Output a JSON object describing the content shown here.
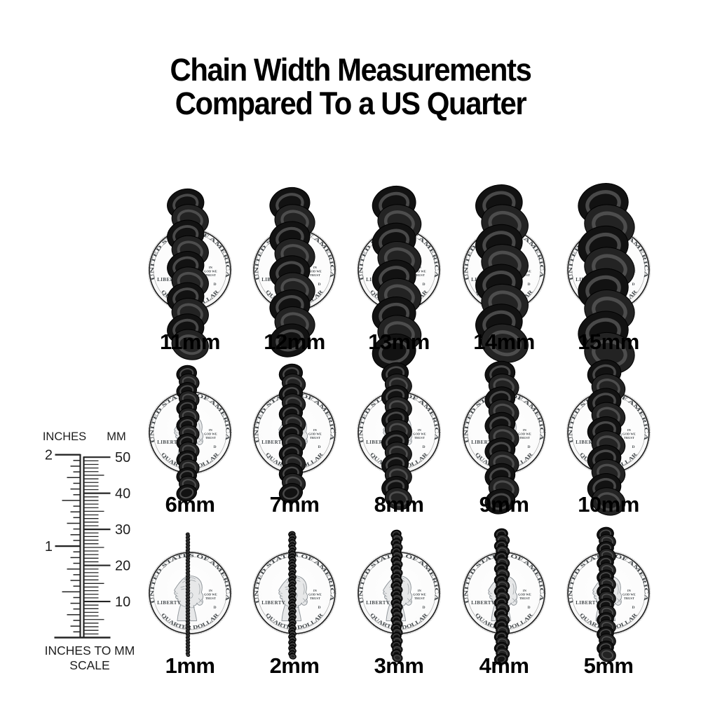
{
  "title": {
    "line1": "Chain Width Measurements",
    "line2": "Compared To a US Quarter"
  },
  "ruler": {
    "left_header": "INCHES",
    "right_header": "MM",
    "left_unit_labels": [
      "2",
      "1"
    ],
    "right_unit_labels": [
      "50",
      "40",
      "30",
      "20",
      "10"
    ],
    "caption_line1": "INCHES TO MM",
    "caption_line2": "SCALE"
  },
  "coin": {
    "top_arc_text": "UNITED STATES OF AMERICA",
    "bottom_arc_text": "QUARTER DOLLAR",
    "left_text": "LIBERTY",
    "right_motto_lines": [
      "IN",
      "GOD WE",
      "TRUST"
    ],
    "mint_mark": "D"
  },
  "grid": {
    "unit_suffix": "mm",
    "rows": [
      {
        "sizes_mm": [
          11,
          12,
          13,
          14,
          15
        ],
        "labels": [
          "11mm",
          "12mm",
          "13mm",
          "14mm",
          "15mm"
        ]
      },
      {
        "sizes_mm": [
          6,
          7,
          8,
          9,
          10
        ],
        "labels": [
          "6mm",
          "7mm",
          "8mm",
          "9mm",
          "10mm"
        ]
      },
      {
        "sizes_mm": [
          1,
          2,
          3,
          4,
          5
        ],
        "labels": [
          "1mm",
          "2mm",
          "3mm",
          "4mm",
          "5mm"
        ]
      }
    ]
  },
  "colors": {
    "background": "#ffffff",
    "title_text": "#000000",
    "label_text": "#000000",
    "chain_dark": "#121212",
    "chain_mid": "#232323",
    "chain_highlight": "#5c5c5c",
    "chain_gap_glint": "#f6f6f6",
    "coin_face": "#fcfcfc",
    "coin_rim": "#1c1c1c",
    "coin_engraving": "#43484b",
    "coin_copper_edge": "#b07a50",
    "ruler_ink": "#242424"
  }
}
